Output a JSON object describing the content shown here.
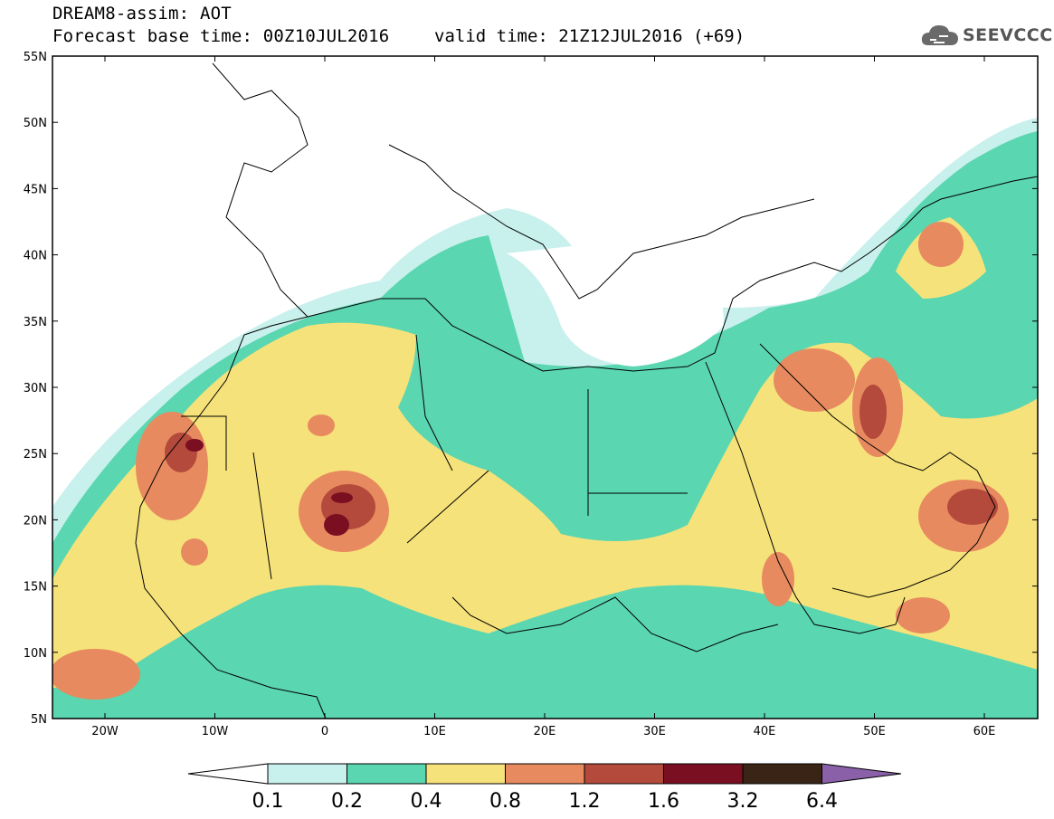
{
  "header": {
    "line1": "DREAM8-assim: AOT",
    "line2": "Forecast base time: 00Z10JUL2016",
    "valid": "valid time: 21Z12JUL2016 (+69)"
  },
  "logo": {
    "text": "SEEVCCC",
    "icon": "cloud-icon"
  },
  "map": {
    "variable": "AOT",
    "lat_labels": [
      "55N",
      "50N",
      "45N",
      "40N",
      "35N",
      "30N",
      "25N",
      "20N",
      "15N",
      "10N",
      "5N"
    ],
    "lon_labels": [
      "20W",
      "10W",
      "0",
      "10E",
      "20E",
      "30E",
      "40E",
      "50E",
      "60E"
    ]
  },
  "colorbar": {
    "ticks": [
      "0.1",
      "0.2",
      "0.4",
      "0.8",
      "1.2",
      "1.6",
      "3.2",
      "6.4"
    ],
    "colors": [
      "#c8f0ec",
      "#5ad6b0",
      "#f6e27a",
      "#e88a5f",
      "#b44a3c",
      "#7a0f22",
      "#3a2416",
      "#8a60a8"
    ]
  }
}
